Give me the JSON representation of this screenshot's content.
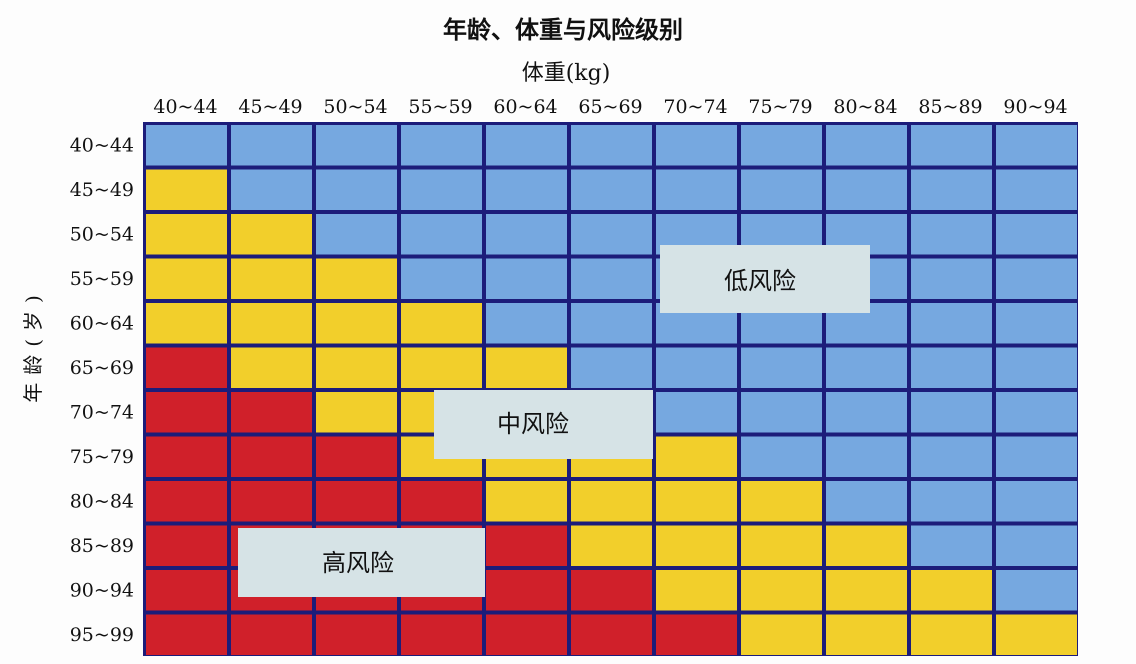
{
  "chart_data": {
    "type": "heatmap",
    "title": "年龄、体重与风险级别",
    "xlabel": "体重(kg)",
    "ylabel": "年龄(岁)",
    "x_categories": [
      "40~44",
      "45~49",
      "50~54",
      "55~59",
      "60~64",
      "65~69",
      "70~74",
      "75~79",
      "80~84",
      "85~89",
      "90~94"
    ],
    "y_categories": [
      "40~44",
      "45~49",
      "50~54",
      "55~59",
      "60~64",
      "65~69",
      "70~74",
      "75~79",
      "80~84",
      "85~89",
      "90~94",
      "95~99"
    ],
    "levels": {
      "L": "低风险",
      "M": "中风险",
      "H": "高风险"
    },
    "colors": {
      "L": "#76a8e0",
      "M": "#f2cf2b",
      "H": "#d0202a",
      "grid": "#1c1c7a",
      "label_box": "#d6e3e6"
    },
    "values": [
      [
        "L",
        "L",
        "L",
        "L",
        "L",
        "L",
        "L",
        "L",
        "L",
        "L",
        "L"
      ],
      [
        "M",
        "L",
        "L",
        "L",
        "L",
        "L",
        "L",
        "L",
        "L",
        "L",
        "L"
      ],
      [
        "M",
        "M",
        "L",
        "L",
        "L",
        "L",
        "L",
        "L",
        "L",
        "L",
        "L"
      ],
      [
        "M",
        "M",
        "M",
        "L",
        "L",
        "L",
        "L",
        "L",
        "L",
        "L",
        "L"
      ],
      [
        "M",
        "M",
        "M",
        "M",
        "L",
        "L",
        "L",
        "L",
        "L",
        "L",
        "L"
      ],
      [
        "H",
        "M",
        "M",
        "M",
        "M",
        "L",
        "L",
        "L",
        "L",
        "L",
        "L"
      ],
      [
        "H",
        "H",
        "M",
        "M",
        "M",
        "M",
        "L",
        "L",
        "L",
        "L",
        "L"
      ],
      [
        "H",
        "H",
        "H",
        "M",
        "M",
        "M",
        "M",
        "L",
        "L",
        "L",
        "L"
      ],
      [
        "H",
        "H",
        "H",
        "H",
        "M",
        "M",
        "M",
        "M",
        "L",
        "L",
        "L"
      ],
      [
        "H",
        "H",
        "H",
        "H",
        "H",
        "M",
        "M",
        "M",
        "M",
        "L",
        "L"
      ],
      [
        "H",
        "H",
        "H",
        "H",
        "H",
        "H",
        "M",
        "M",
        "M",
        "M",
        "L"
      ],
      [
        "H",
        "H",
        "H",
        "H",
        "H",
        "H",
        "H",
        "M",
        "M",
        "M",
        "M"
      ]
    ]
  }
}
